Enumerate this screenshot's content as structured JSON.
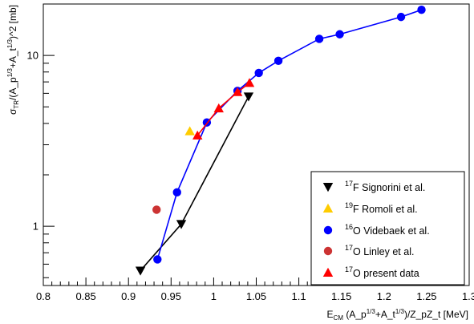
{
  "chart_data": {
    "type": "scatter",
    "title": "",
    "xlabel": {
      "main": "E",
      "sub": "CM",
      "part1": " (A_p",
      "sup1": "1/3",
      "part2": "+A_t",
      "sup2": "1/3",
      "part3": ")/Z_pZ_t  [MeV]"
    },
    "ylabel": {
      "main": "σ",
      "sub": "TR",
      "part1": "/(A_p",
      "sup1": "1/3",
      "part2": "+A_t",
      "sup2": "1/3",
      "part3": ")^2  [mb]"
    },
    "xlim": [
      0.8,
      1.3
    ],
    "ylim": [
      0.45,
      20
    ],
    "ylog": true,
    "grid": false,
    "legend_position": "bottom-right",
    "x_ticks": [
      "0.8",
      "0.85",
      "0.9",
      "0.95",
      "1",
      "1.05",
      "1.1",
      "1.15",
      "1.2",
      "1.25",
      "1.3"
    ],
    "y_ticks": [
      "1",
      "10"
    ],
    "series": [
      {
        "name_sup": "17",
        "name": "F  Signorini et al.",
        "marker": "triangle-down",
        "color": "#000000",
        "connected": true,
        "x": [
          0.914,
          0.962,
          1.041
        ],
        "y": [
          0.55,
          1.03,
          5.75
        ]
      },
      {
        "name_sup": "19",
        "name": "F  Romoli et al.",
        "marker": "triangle-up",
        "color": "#ffcc00",
        "connected": false,
        "x": [
          0.972
        ],
        "y": [
          3.6
        ]
      },
      {
        "name_sup": "16",
        "name": "O  Videbaek et al.",
        "marker": "circle",
        "color": "#0000ff",
        "connected": true,
        "x": [
          0.934,
          0.957,
          0.992,
          1.028,
          1.053,
          1.076,
          1.124,
          1.148,
          1.22,
          1.244
        ],
        "y": [
          0.64,
          1.58,
          4.05,
          6.2,
          7.9,
          9.3,
          12.5,
          13.3,
          16.8,
          18.5
        ]
      },
      {
        "name_sup": "17",
        "name": "O  Linley et al.",
        "marker": "circle",
        "color": "#cc3333",
        "connected": false,
        "x": [
          0.933
        ],
        "y": [
          1.25
        ]
      },
      {
        "name_sup": "17",
        "name": "O present data",
        "marker": "triangle-up",
        "color": "#ff0000",
        "connected": true,
        "x": [
          0.981,
          1.006,
          1.028,
          1.042
        ],
        "y": [
          3.4,
          4.9,
          6.1,
          6.9
        ]
      }
    ]
  }
}
